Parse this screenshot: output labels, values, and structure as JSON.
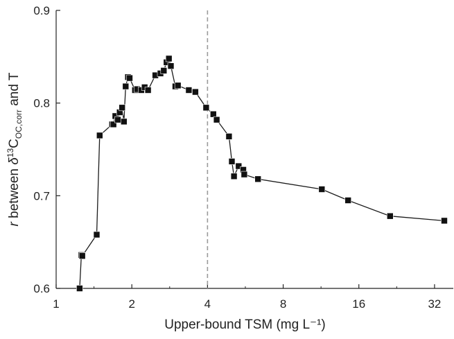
{
  "chart_data": {
    "type": "line",
    "title": "",
    "xlabel": "Upper-bound TSM (mg L⁻¹)",
    "ylabel": {
      "italic_r": "r",
      "between": " between ",
      "delta": "δ",
      "sup": "13",
      "C": "C",
      "sub": "OC,corr",
      "tail": " and T"
    },
    "x_scale": "log2",
    "xlim": [
      1,
      38
    ],
    "ylim": [
      0.6,
      0.9
    ],
    "x_ticks": [
      1,
      2,
      4,
      8,
      16,
      32
    ],
    "x_tick_labels": [
      "1",
      "2",
      "4",
      "8",
      "16",
      "32"
    ],
    "y_ticks": [
      0.6,
      0.7,
      0.8,
      0.9
    ],
    "y_tick_labels": [
      "0.6",
      "0.7",
      "0.8",
      "0.9"
    ],
    "reference_line": {
      "x": 4,
      "style": "dashed",
      "color": "#9a9a9a"
    },
    "grid": false,
    "line_color": "#1a1a1a",
    "marker": "square",
    "series": [
      {
        "x": [
          1.24,
          1.26,
          1.27,
          1.45,
          1.49,
          1.67,
          1.69,
          1.72,
          1.76,
          1.79,
          1.83,
          1.86,
          1.89,
          1.93,
          1.96,
          2.06,
          2.1,
          2.18,
          2.25,
          2.32,
          2.48,
          2.6,
          2.68,
          2.75,
          2.81,
          2.86,
          2.98,
          3.05,
          3.37,
          3.58,
          3.95,
          4.22,
          4.35,
          4.87,
          5.0,
          5.1,
          5.32,
          5.55,
          5.6,
          6.35,
          11.4,
          14.5,
          21.3,
          35.0
        ],
        "y": [
          0.6,
          0.636,
          0.635,
          0.658,
          0.765,
          0.777,
          0.777,
          0.786,
          0.782,
          0.79,
          0.795,
          0.78,
          0.818,
          0.828,
          0.827,
          0.814,
          0.815,
          0.814,
          0.817,
          0.814,
          0.83,
          0.832,
          0.835,
          0.844,
          0.848,
          0.84,
          0.818,
          0.819,
          0.814,
          0.812,
          0.795,
          0.788,
          0.782,
          0.764,
          0.737,
          0.721,
          0.732,
          0.728,
          0.723,
          0.718,
          0.707,
          0.695,
          0.678,
          0.673
        ]
      }
    ]
  }
}
